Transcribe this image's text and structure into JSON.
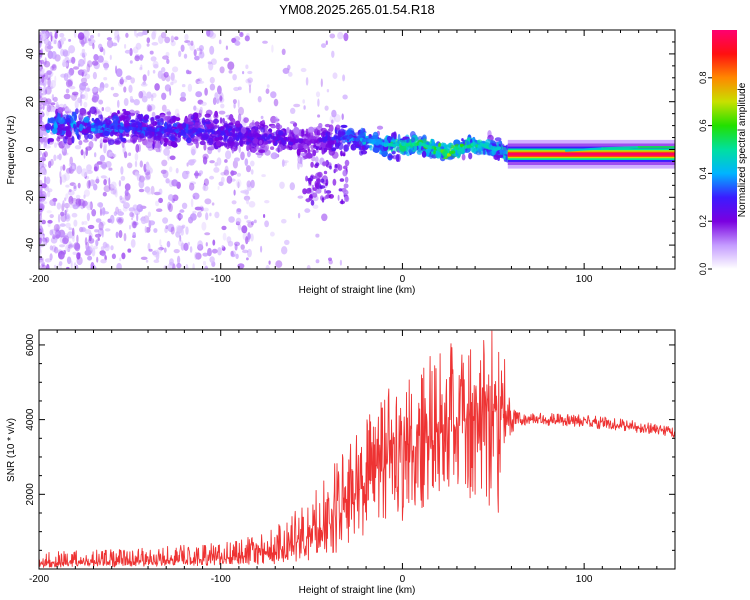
{
  "title": "YM08.2025.265.01.54.R18",
  "colors": {
    "frame": "#000000",
    "snr_line": "#ee3333",
    "colorbar_stops": [
      "#ffffff",
      "#c49bff",
      "#7a00e0",
      "#3b1cff",
      "#00b4ff",
      "#00e0a0",
      "#22e000",
      "#c8e000",
      "#ff8800",
      "#ff1010",
      "#ff0070"
    ]
  },
  "chart_data": [
    {
      "type": "heatmap",
      "title": "YM08.2025.265.01.54.R18",
      "xlabel": "Height of straight line (km)",
      "ylabel": "Frequency (Hz)",
      "xlim": [
        -200,
        150
      ],
      "ylim": [
        -50,
        50
      ],
      "x_ticks": [
        -200,
        -100,
        0,
        100
      ],
      "x_tick_labels": [
        "-200",
        "-100",
        "0",
        "100"
      ],
      "y_ticks": [
        -40,
        -20,
        0,
        20,
        40
      ],
      "y_tick_labels": [
        "-40",
        "-20",
        "0",
        "20",
        "40"
      ],
      "colorbar": {
        "label": "Normalized spectral amplitude",
        "range": [
          0,
          1
        ],
        "ticks": [
          0.0,
          0.2,
          0.4,
          0.6,
          0.8
        ],
        "tick_labels": [
          "0.0",
          "0.2",
          "0.4",
          "0.6",
          "0.8"
        ]
      },
      "ridge": {
        "x": [
          -170,
          -150,
          -130,
          -110,
          -90,
          -70,
          -50,
          -35,
          -20,
          -10,
          0,
          10,
          20,
          25,
          30,
          40,
          50,
          58
        ],
        "frequency": [
          10,
          9,
          8,
          8,
          6,
          5,
          3,
          5,
          4,
          2,
          2,
          2,
          0,
          -2,
          1,
          2,
          1,
          -2
        ],
        "amplitude": [
          0.35,
          0.3,
          0.3,
          0.28,
          0.25,
          0.25,
          0.2,
          0.3,
          0.4,
          0.45,
          0.5,
          0.5,
          0.55,
          0.6,
          0.55,
          0.5,
          0.45,
          0.4
        ]
      },
      "carrier": {
        "x_start": 58,
        "x_end": 150,
        "frequency": -2,
        "amplitude": 0.98
      },
      "sideband": {
        "x": [
          90,
          110,
          130,
          150
        ],
        "frequency": [
          -0.5,
          0.5,
          1,
          1
        ],
        "amplitude": [
          0.45,
          0.5,
          0.55,
          0.6
        ]
      }
    },
    {
      "type": "line",
      "xlabel": "Height of straight line (km)",
      "ylabel": "SNR (10 * v/v)",
      "xlim": [
        -200,
        150
      ],
      "ylim": [
        0,
        6400
      ],
      "x_ticks": [
        -200,
        -100,
        0,
        100
      ],
      "x_tick_labels": [
        "-200",
        "-100",
        "0",
        "100"
      ],
      "y_ticks": [
        2000,
        4000,
        6000
      ],
      "y_tick_labels": [
        "2000",
        "4000",
        "6000"
      ],
      "series": [
        {
          "name": "SNR",
          "envelope": {
            "x": [
              -200,
              -150,
              -100,
              -80,
              -70,
              -60,
              -50,
              -40,
              -30,
              -20,
              -10,
              0,
              10,
              20,
              30,
              40,
              50,
              55,
              60,
              62,
              70,
              90,
              110,
              130,
              150
            ],
            "mean": [
              150,
              200,
              270,
              350,
              450,
              650,
              900,
              1300,
              1800,
              2300,
              2800,
              3100,
              3450,
              3700,
              3900,
              4050,
              4250,
              4100,
              3950,
              4050,
              4000,
              3950,
              3900,
              3800,
              3650
            ],
            "low": [
              40,
              60,
              100,
              120,
              140,
              180,
              250,
              350,
              500,
              700,
              1000,
              1300,
              1600,
              1800,
              2000,
              1600,
              1300,
              1600,
              3400,
              3850,
              3850,
              3800,
              3750,
              3650,
              3500
            ],
            "high": [
              450,
              550,
              700,
              900,
              1200,
              1500,
              2000,
              2800,
              3300,
              4000,
              4700,
              5200,
              5600,
              5900,
              6100,
              6200,
              6450,
              6300,
              5000,
              4250,
              4200,
              4150,
              4100,
              3950,
              3800
            ]
          }
        }
      ]
    }
  ]
}
